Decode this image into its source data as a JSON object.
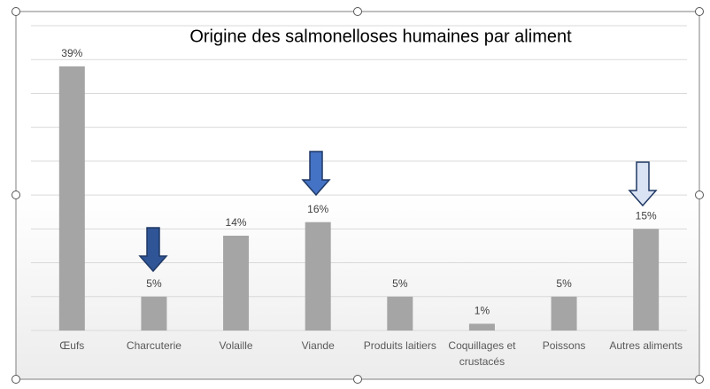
{
  "chart_data": {
    "type": "bar",
    "title": "Origine des salmonelloses humaines par aliment",
    "categories": [
      "Œufs",
      "Charcuterie",
      "Volaille",
      "Viande",
      "Produits laitiers",
      "Coquillages et crustacés",
      "Poissons",
      "Autres aliments"
    ],
    "values": [
      39,
      5,
      14,
      16,
      5,
      1,
      5,
      15
    ],
    "value_labels": [
      "39%",
      "5%",
      "14%",
      "16%",
      "5%",
      "1%",
      "5%",
      "15%"
    ],
    "color": "#a5a5a5",
    "ylim": [
      0,
      45
    ],
    "yticks": [
      0,
      5,
      10,
      15,
      20,
      25,
      30,
      35,
      40,
      45
    ],
    "y_tick_labels": false,
    "grid": true
  }
}
